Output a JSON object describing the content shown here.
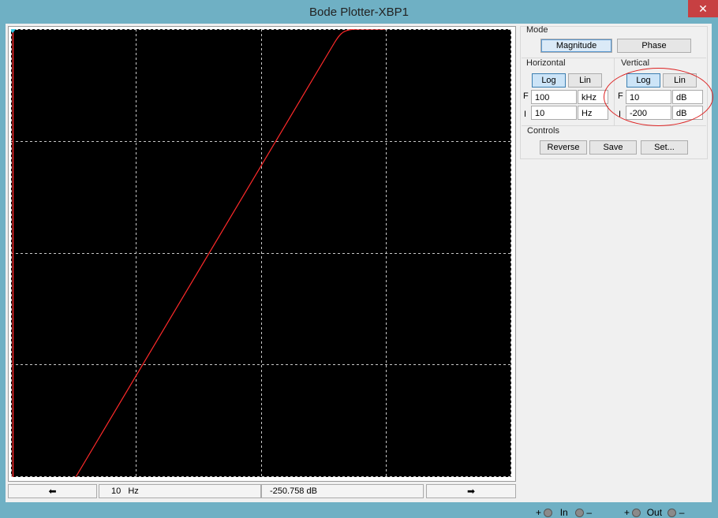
{
  "window": {
    "title": "Bode Plotter-XBP1",
    "close_glyph": "✕"
  },
  "plot": {
    "background": "#000000",
    "grid_color": "#c8c8c8",
    "trace_color": "#ff2a2a",
    "cursor_color": "#ff2a2a",
    "marker_color": "#2fc4e0"
  },
  "status": {
    "left_arrow": "⬅",
    "right_arrow": "➡",
    "frequency_value": "10",
    "frequency_unit": "Hz",
    "magnitude_value": "-250.758 dB"
  },
  "mode": {
    "label": "Mode",
    "magnitude_button": "Magnitude",
    "phase_button": "Phase"
  },
  "horizontal": {
    "label": "Horizontal",
    "log_button": "Log",
    "lin_button": "Lin",
    "final_label": "F",
    "final_value": "100",
    "final_unit": "kHz",
    "initial_label": "I",
    "initial_value": "10",
    "initial_unit": "Hz"
  },
  "vertical": {
    "label": "Vertical",
    "log_button": "Log",
    "lin_button": "Lin",
    "final_label": "F",
    "final_value": "10",
    "final_unit": "dB",
    "initial_label": "I",
    "initial_value": "-200",
    "initial_unit": "dB"
  },
  "controls": {
    "label": "Controls",
    "reverse_button": "Reverse",
    "save_button": "Save",
    "set_button": "Set..."
  },
  "terminals": {
    "in_plus": "+",
    "in_label": "In",
    "in_minus": "–",
    "out_plus": "+",
    "out_label": "Out",
    "out_minus": "–"
  }
}
